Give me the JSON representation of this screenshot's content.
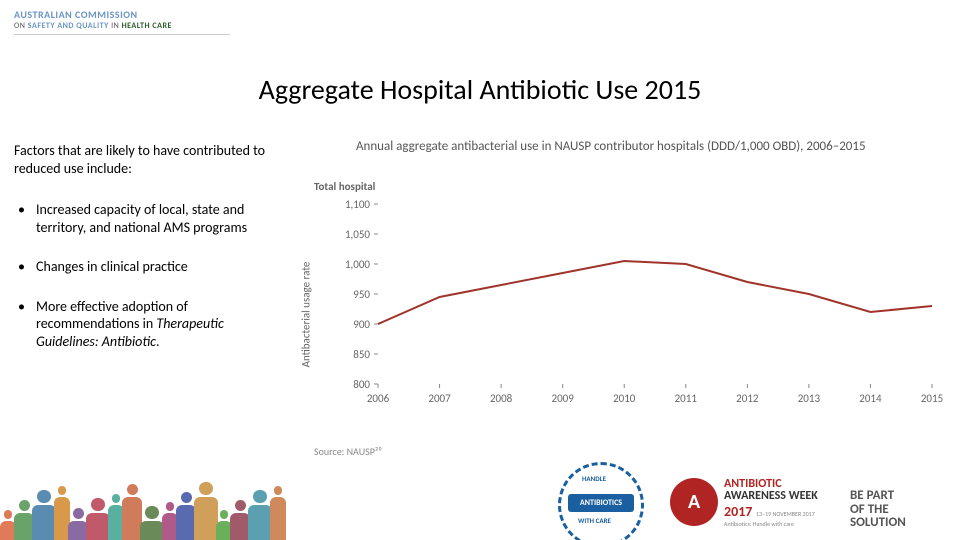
{
  "header": {
    "org_line1": "AUSTRALIAN COMMISSION",
    "org_on": "ON ",
    "org_sq": "SAFETY AND QUALITY",
    "org_in": " IN ",
    "org_hc": "HEALTH CARE"
  },
  "title": "Aggregate Hospital Antibiotic Use 2015",
  "left": {
    "intro": "Factors that are likely to have contributed to reduced use include:",
    "bullets": [
      {
        "text": "Increased capacity of local, state and territory, and national AMS programs"
      },
      {
        "text": "Changes in clinical practice"
      },
      {
        "text_prefix": "More effective adoption of recommendations in ",
        "italic": "Therapeutic Guidelines: Antibiotic",
        "suffix": "."
      }
    ]
  },
  "chart": {
    "title": "Annual aggregate antibacterial use in NAUSP contributor hospitals (DDD/1,000 OBD), 2006–2015",
    "subtitle": "Total hospital",
    "ylabel": "Antibacterial usage rate",
    "source": "Source: NAUSP²⁰",
    "type": "line",
    "xlim": [
      2006,
      2015
    ],
    "ylim": [
      800,
      1100
    ],
    "ytick_step": 50,
    "yticks": [
      800,
      850,
      900,
      950,
      1000,
      1050,
      1100
    ],
    "xticks": [
      2006,
      2007,
      2008,
      2009,
      2010,
      2011,
      2012,
      2013,
      2014,
      2015
    ],
    "line_color": "#a0342a",
    "line_width": 2,
    "grid_color": "#ffffff",
    "axis_color": "#888888",
    "background_color": "#ffffff",
    "tick_fontsize": 11,
    "title_fontsize": 13,
    "series": {
      "years": [
        2006,
        2007,
        2008,
        2009,
        2010,
        2011,
        2012,
        2013,
        2014,
        2015
      ],
      "values": [
        900,
        945,
        965,
        985,
        1005,
        1000,
        970,
        950,
        920,
        930
      ]
    }
  },
  "footer": {
    "people_colors": [
      "#e07b5a",
      "#6aa36a",
      "#5a8bb0",
      "#d89a4a",
      "#8a6aa3",
      "#c05a6a",
      "#5ab0a0",
      "#d07b5a",
      "#6a8a5a",
      "#b05a8a",
      "#5a6ab0",
      "#d0a05a",
      "#6ab05a",
      "#a05a6a",
      "#5aa0b0",
      "#d08a5a"
    ],
    "handle": {
      "top": "HANDLE",
      "ribbon": "ANTIBIOTICS",
      "bottom": "WITH CARE"
    },
    "week": {
      "l1": "ANTIBIOTIC",
      "l2": "AWARENESS WEEK",
      "year": "2017",
      "dates": "13–19 NOVEMBER 2017",
      "sub": "Antibiotics: Handle with care"
    },
    "bepart": {
      "l1": "BE PART",
      "l2": "OF THE",
      "l3": "SOLUTION"
    }
  }
}
